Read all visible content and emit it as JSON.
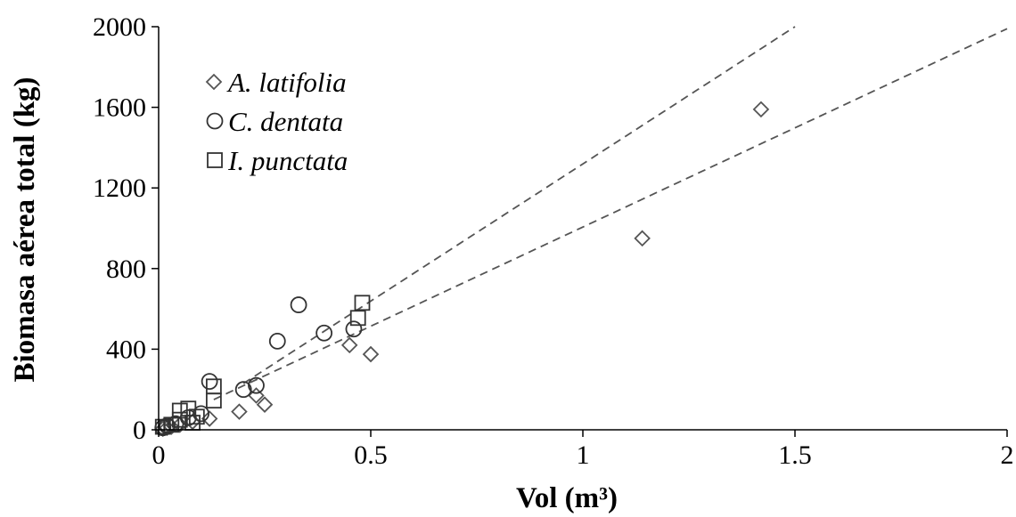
{
  "chart_data": {
    "type": "scatter",
    "xlabel": "Vol (m³)",
    "ylabel": "Biomasa aérea total (kg)",
    "xlim": [
      0,
      2
    ],
    "ylim": [
      0,
      2000
    ],
    "x_ticks": [
      "0",
      "0.5",
      "1",
      "1.5",
      "2"
    ],
    "y_ticks": [
      "0",
      "400",
      "800",
      "1200",
      "1600",
      "2000"
    ],
    "grid": false,
    "legend_position": "top-left",
    "colors": {
      "axis": "#000000",
      "diamond_marker": "#555555",
      "circle_marker": "#333333",
      "square_marker": "#333333",
      "trend_line": "#555555"
    },
    "series": [
      {
        "name": "A. latifolia",
        "marker": "diamond",
        "points": [
          {
            "x": 0.01,
            "y": 5
          },
          {
            "x": 0.02,
            "y": 10
          },
          {
            "x": 0.03,
            "y": 15
          },
          {
            "x": 0.05,
            "y": 25
          },
          {
            "x": 0.08,
            "y": 40
          },
          {
            "x": 0.12,
            "y": 55
          },
          {
            "x": 0.19,
            "y": 90
          },
          {
            "x": 0.23,
            "y": 170
          },
          {
            "x": 0.25,
            "y": 125
          },
          {
            "x": 0.45,
            "y": 420
          },
          {
            "x": 0.5,
            "y": 375
          },
          {
            "x": 1.14,
            "y": 950
          },
          {
            "x": 1.42,
            "y": 1590
          }
        ]
      },
      {
        "name": "C. dentata",
        "marker": "circle",
        "points": [
          {
            "x": 0.01,
            "y": 10
          },
          {
            "x": 0.02,
            "y": 20
          },
          {
            "x": 0.04,
            "y": 30
          },
          {
            "x": 0.07,
            "y": 60
          },
          {
            "x": 0.1,
            "y": 80
          },
          {
            "x": 0.12,
            "y": 240
          },
          {
            "x": 0.2,
            "y": 200
          },
          {
            "x": 0.23,
            "y": 220
          },
          {
            "x": 0.28,
            "y": 440
          },
          {
            "x": 0.33,
            "y": 620
          },
          {
            "x": 0.39,
            "y": 480
          },
          {
            "x": 0.46,
            "y": 500
          }
        ]
      },
      {
        "name": "I. punctata",
        "marker": "square",
        "points": [
          {
            "x": 0.01,
            "y": 15
          },
          {
            "x": 0.03,
            "y": 25
          },
          {
            "x": 0.05,
            "y": 50
          },
          {
            "x": 0.05,
            "y": 95
          },
          {
            "x": 0.07,
            "y": 105
          },
          {
            "x": 0.08,
            "y": 35
          },
          {
            "x": 0.09,
            "y": 65
          },
          {
            "x": 0.13,
            "y": 145
          },
          {
            "x": 0.13,
            "y": 215
          },
          {
            "x": 0.47,
            "y": 555
          },
          {
            "x": 0.48,
            "y": 630
          }
        ]
      }
    ],
    "trend_lines": [
      {
        "x1": 0.13,
        "y1": 150,
        "x2": 2.0,
        "y2": 1990
      },
      {
        "x1": 0.2,
        "y1": 230,
        "x2": 1.5,
        "y2": 2000
      }
    ]
  }
}
